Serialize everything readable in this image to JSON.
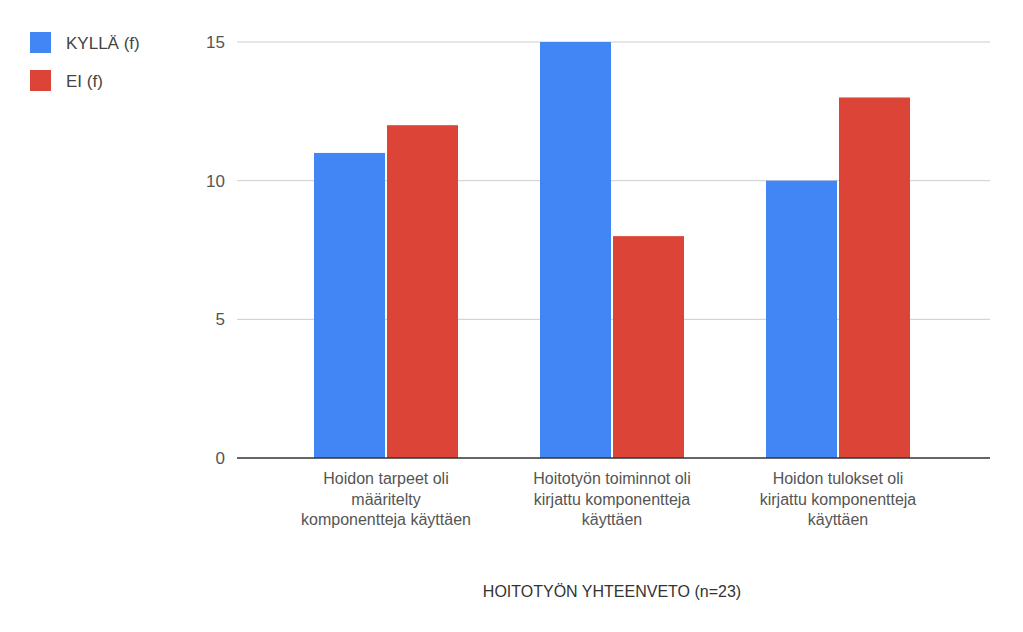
{
  "chart_data": {
    "type": "bar",
    "x_label": "HOITOTYÖN YHTEENVETO (n=23)",
    "categories": [
      "Hoidon tarpeet oli määritelty komponentteja käyttäen",
      "Hoitotyön toiminnot oli kirjattu komponentteja käyttäen",
      "Hoidon tulokset oli kirjattu komponentteja käyttäen"
    ],
    "series": [
      {
        "name": "KYLLÄ (f)",
        "color": "#4285f4",
        "values": [
          11,
          15,
          10
        ]
      },
      {
        "name": "EI (f)",
        "color": "#db4437",
        "values": [
          12,
          8,
          13
        ]
      }
    ],
    "ylim": [
      0,
      15
    ],
    "yticks": [
      0,
      5,
      10,
      15
    ],
    "grid": true,
    "legend": "top-left"
  }
}
